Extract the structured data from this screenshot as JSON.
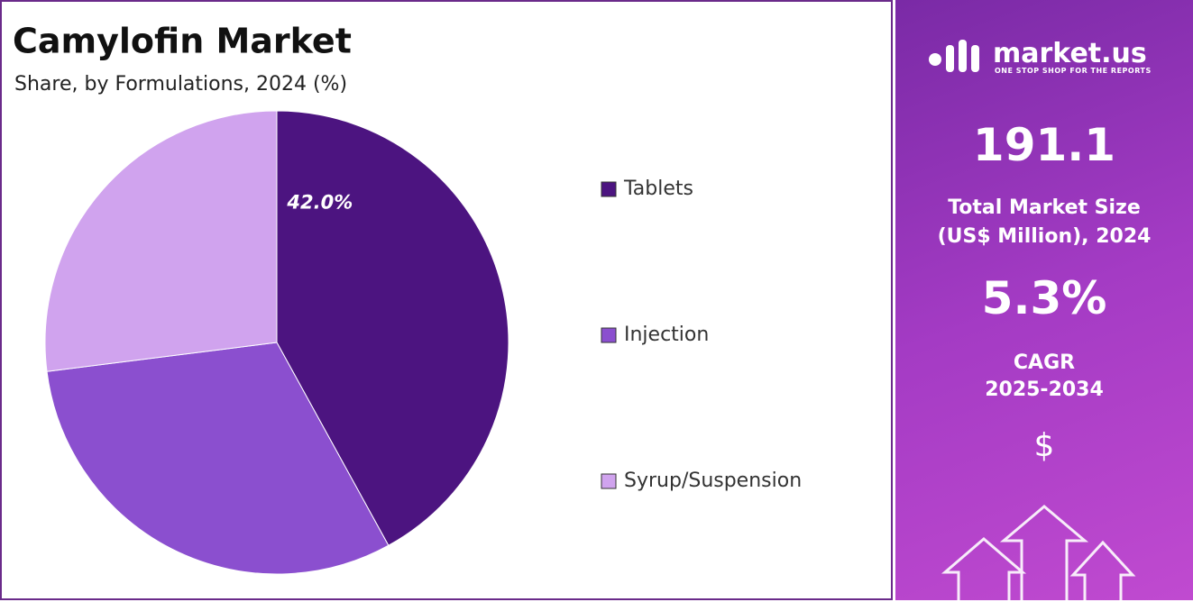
{
  "chart_data": {
    "type": "pie",
    "title": "Camylofin Market",
    "subtitle": "Share, by Formulations, 2024 (%)",
    "categories": [
      "Tablets",
      "Injection",
      "Syrup/Suspension"
    ],
    "values": [
      42.0,
      31,
      27
    ],
    "value_labels": [
      "42.0%",
      null,
      null
    ],
    "colors": [
      "#4c1480",
      "#8b4fcf",
      "#d0a3ee"
    ],
    "legend": "right"
  },
  "side_panel": {
    "brand": "market.us",
    "tagline": "ONE STOP SHOP FOR THE REPORTS",
    "market_size": "191.1",
    "market_size_label": [
      "Total Market Size",
      "(US$ Million), 2024"
    ],
    "cagr": "5.3%",
    "cagr_label": [
      "CAGR",
      "2025-2034"
    ],
    "currency": "$"
  }
}
